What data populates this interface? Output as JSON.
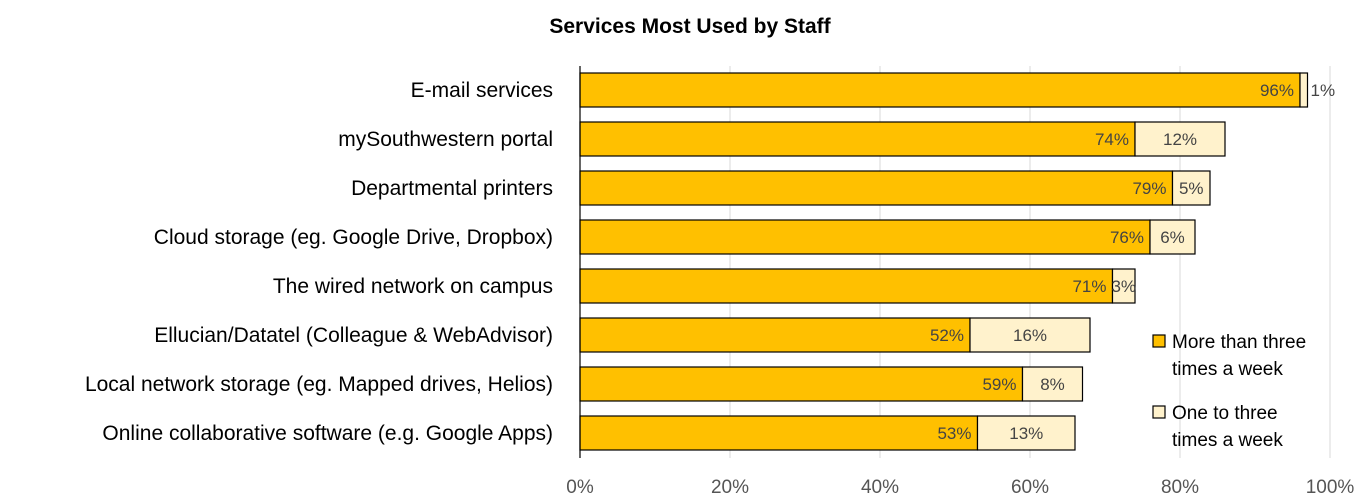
{
  "chart_data": {
    "type": "bar",
    "orientation": "horizontal",
    "stacked": true,
    "title": "Services Most Used by Staff",
    "xlabel": "",
    "ylabel": "",
    "categories": [
      "E-mail services",
      "mySouthwestern portal",
      "Departmental printers",
      "Cloud storage (eg. Google Drive, Dropbox)",
      "The wired network on campus",
      "Ellucian/Datatel (Colleague & WebAdvisor)",
      "Local network storage (eg. Mapped drives, Helios)",
      "Online collaborative software (e.g. Google Apps)"
    ],
    "series": [
      {
        "name": "More than three times a week",
        "color": "#FFC000",
        "values": [
          96,
          74,
          79,
          76,
          71,
          52,
          59,
          53
        ],
        "labels": [
          "96%",
          "74%",
          "79%",
          "76%",
          "71%",
          "52%",
          "59%",
          "53%"
        ]
      },
      {
        "name": "One to three times a week",
        "color": "#FFF2CC",
        "values": [
          1,
          12,
          5,
          6,
          3,
          16,
          8,
          13
        ],
        "labels": [
          "1%",
          "12%",
          "5%",
          "6%",
          "3%",
          "16%",
          "8%",
          "13%"
        ]
      }
    ],
    "xlim": [
      0,
      100
    ],
    "xticks": [
      "0%",
      "20%",
      "40%",
      "60%",
      "80%",
      "100%"
    ],
    "grid": true,
    "legend": {
      "position": "right",
      "entries": [
        [
          "More than three",
          "times a week"
        ],
        [
          "One to three",
          "times a week"
        ]
      ]
    }
  }
}
